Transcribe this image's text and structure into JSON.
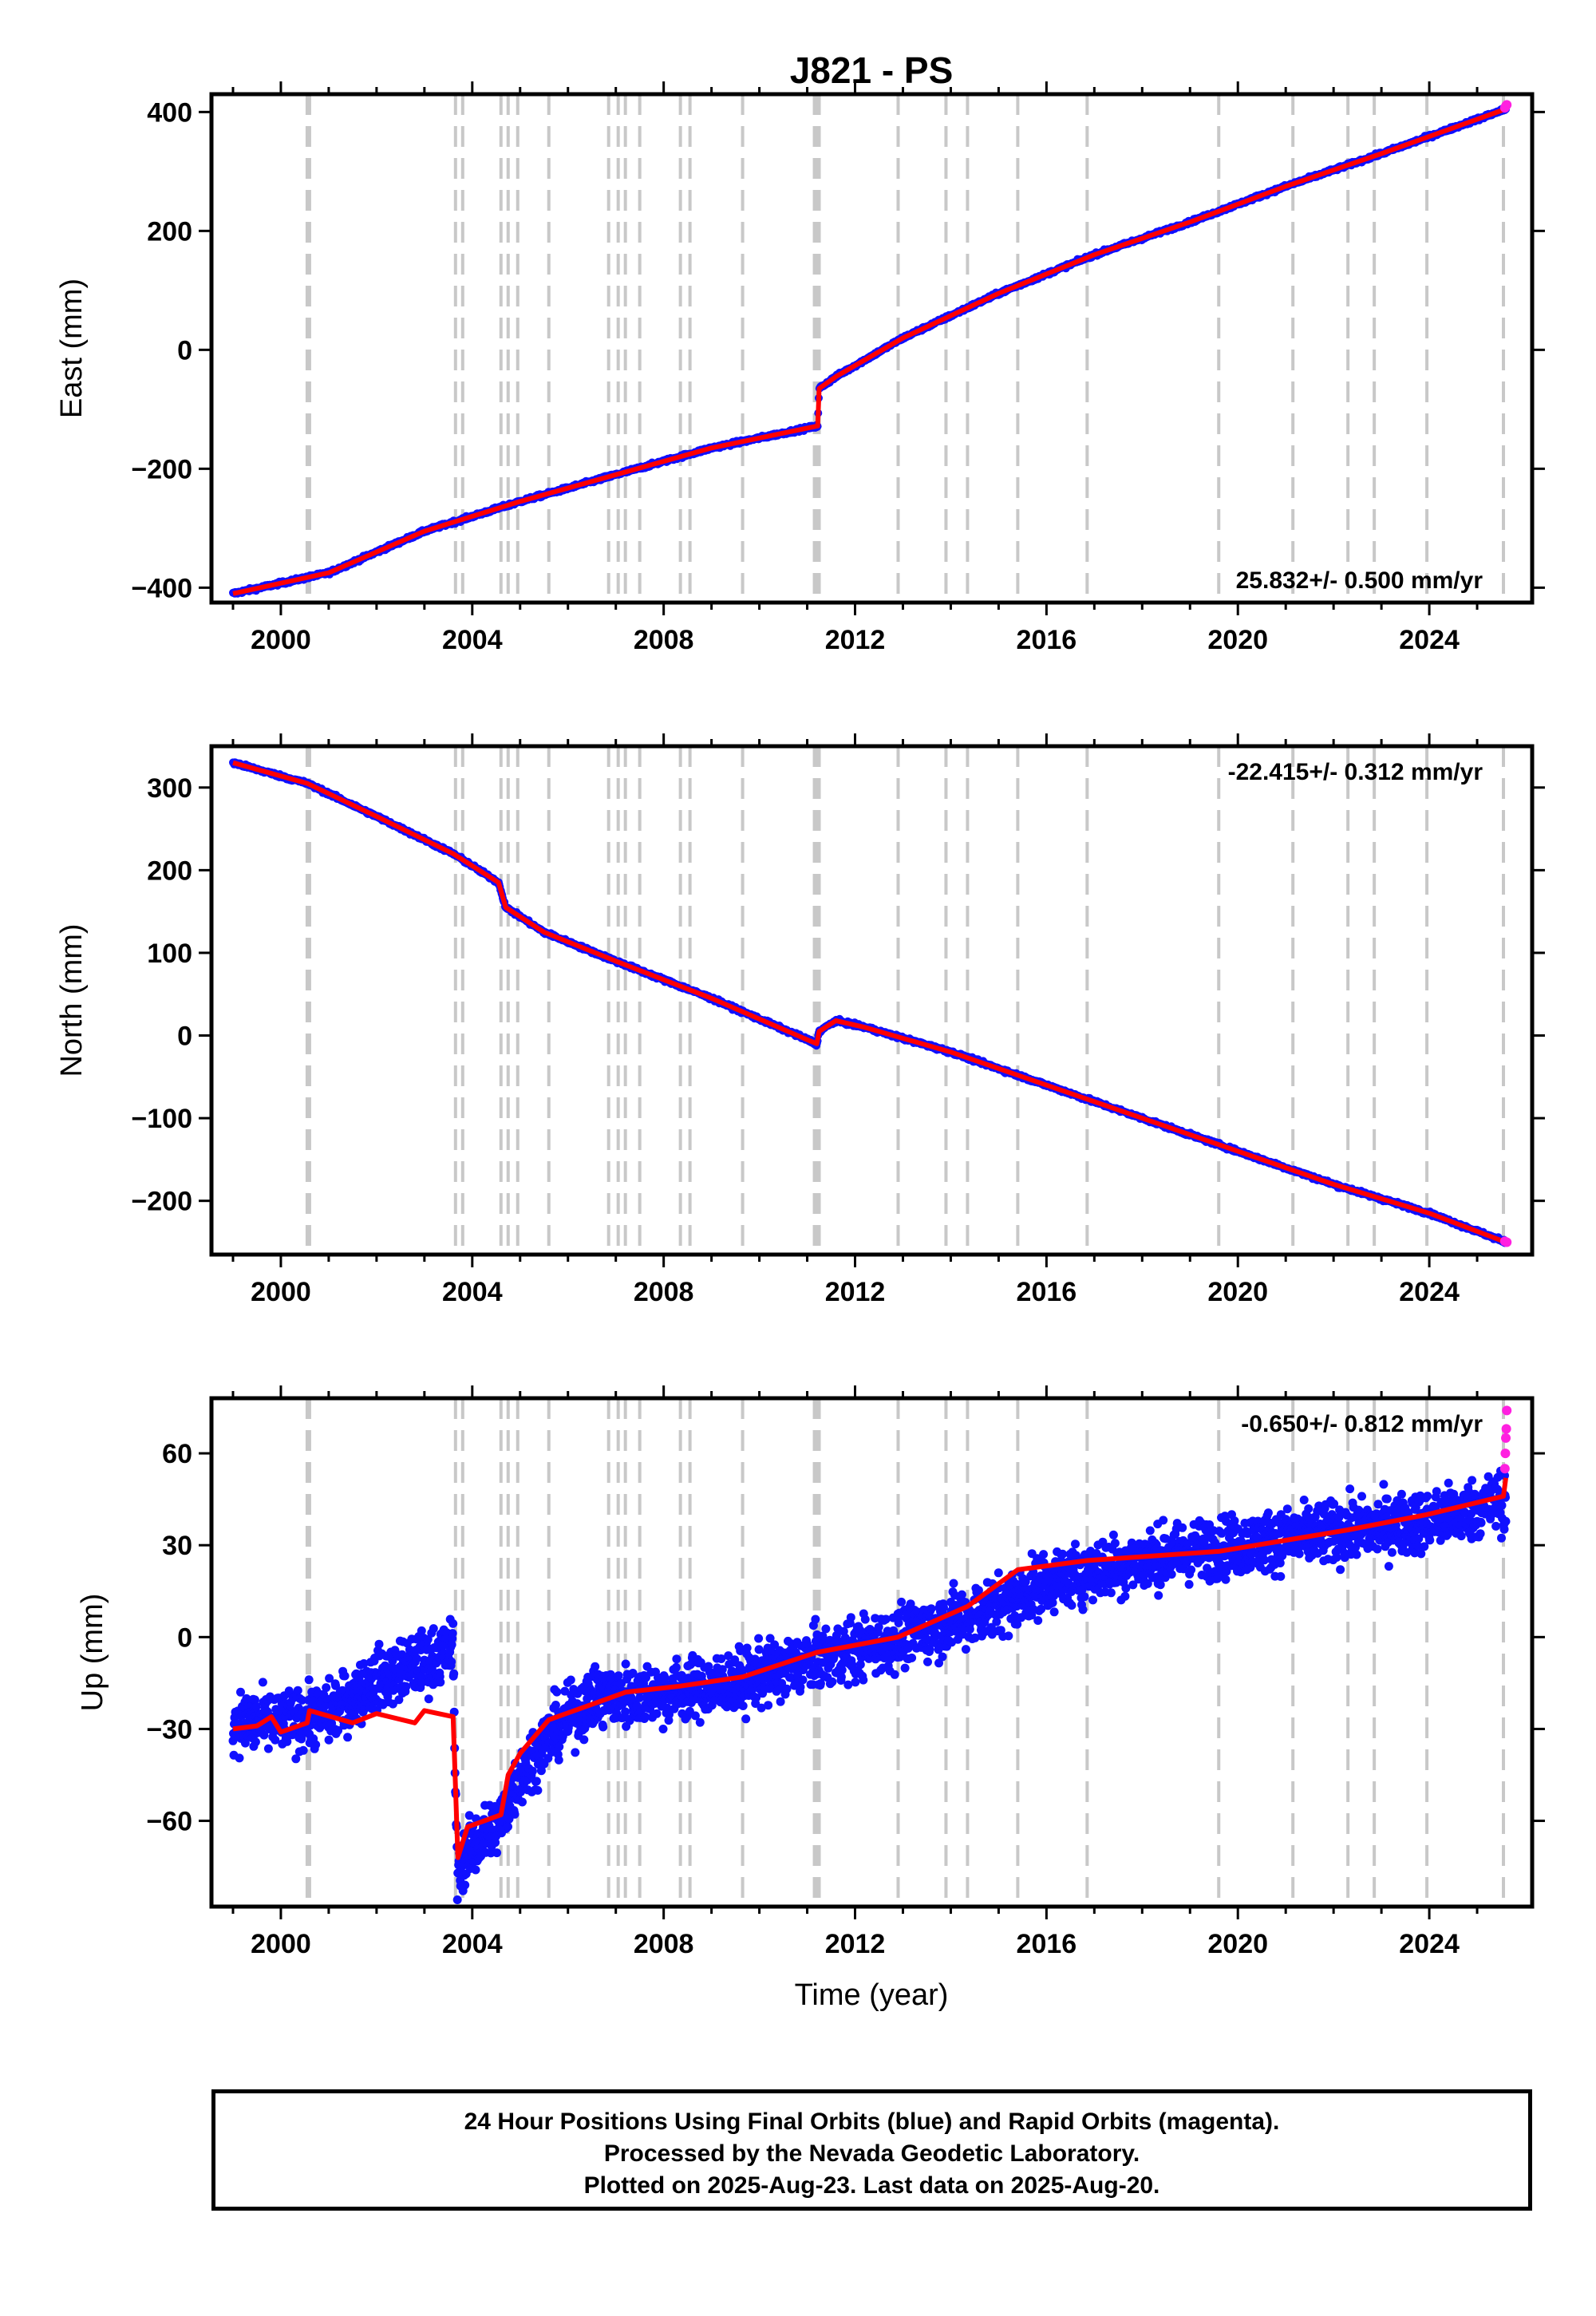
{
  "title": "J821 - PS",
  "xlabel": "Time (year)",
  "x_ticks": [
    2000,
    2004,
    2008,
    2012,
    2016,
    2020,
    2024
  ],
  "colors": {
    "final_orbits": "#1010ff",
    "rapid_orbits": "#ff20e0",
    "model": "#ff0000",
    "steps": "#c8c8c8"
  },
  "footer": {
    "line1": "24 Hour Positions Using Final Orbits (blue) and Rapid Orbits (magenta).",
    "line2": "Processed by the Nevada Geodetic Laboratory.",
    "line3": "Plotted on 2025-Aug-23. Last data on 2025-Aug-20."
  },
  "chart_data": [
    {
      "type": "scatter",
      "ylabel": "East (mm)",
      "rate": "25.832+/- 0.500 mm/yr",
      "rate_position": "bottom-right",
      "xlim": [
        1998.55,
        2026.15
      ],
      "ylim": [
        -425,
        430
      ],
      "y_ticks": [
        -400,
        -200,
        0,
        200,
        400
      ],
      "step_lines": [
        2000.55,
        2000.6,
        2003.65,
        2003.8,
        2004.6,
        2004.75,
        2004.95,
        2005.6,
        2006.85,
        2007.05,
        2007.2,
        2007.5,
        2008.35,
        2008.55,
        2009.65,
        2011.15,
        2011.2,
        2011.25,
        2012.9,
        2013.9,
        2014.35,
        2015.4,
        2016.85,
        2019.6,
        2021.15,
        2022.3,
        2022.85,
        2023.95,
        2025.55
      ],
      "series": [
        {
          "name": "Final Orbits",
          "color": "#1010ff",
          "x": [
            1999.0,
            2001.0,
            2003.0,
            2005.0,
            2007.0,
            2009.0,
            2011.22,
            2011.25,
            2011.6,
            2013.0,
            2015.0,
            2017.0,
            2019.0,
            2021.0,
            2023.0,
            2025.6
          ],
          "y": [
            -410,
            -375,
            -305,
            -255,
            -210,
            -165,
            -128,
            -65,
            -45,
            20,
            95,
            160,
            215,
            275,
            330,
            405
          ]
        },
        {
          "name": "Rapid Orbits",
          "color": "#ff20e0",
          "x": [
            2025.58,
            2025.6,
            2025.62
          ],
          "y": [
            407,
            410,
            412
          ]
        },
        {
          "name": "Model",
          "color": "#ff0000",
          "x": [
            1999.0,
            2001.0,
            2003.0,
            2005.0,
            2007.0,
            2009.0,
            2011.22,
            2011.25,
            2011.6,
            2013.0,
            2015.0,
            2017.0,
            2019.0,
            2021.0,
            2023.0,
            2025.6
          ],
          "y": [
            -410,
            -375,
            -305,
            -255,
            -210,
            -165,
            -128,
            -65,
            -45,
            20,
            95,
            160,
            215,
            275,
            330,
            405
          ]
        }
      ]
    },
    {
      "type": "scatter",
      "ylabel": "North (mm)",
      "rate": "-22.415+/- 0.312 mm/yr",
      "rate_position": "top-right",
      "xlim": [
        1998.55,
        2026.15
      ],
      "ylim": [
        -265,
        350
      ],
      "y_ticks": [
        -200,
        -100,
        0,
        100,
        200,
        300
      ],
      "step_lines": [
        2000.55,
        2000.6,
        2003.65,
        2003.8,
        2004.6,
        2004.75,
        2004.95,
        2005.6,
        2006.85,
        2007.05,
        2007.2,
        2007.5,
        2008.35,
        2008.55,
        2009.65,
        2011.15,
        2011.2,
        2011.25,
        2012.9,
        2013.9,
        2014.35,
        2015.4,
        2016.85,
        2019.6,
        2021.15,
        2022.3,
        2022.85,
        2023.95,
        2025.55
      ],
      "series": [
        {
          "name": "Final Orbits",
          "color": "#1010ff",
          "x": [
            1999.0,
            2000.55,
            2002.0,
            2003.6,
            2004.55,
            2004.7,
            2005.5,
            2007.0,
            2009.0,
            2011.2,
            2011.25,
            2011.6,
            2012.2,
            2014.0,
            2016.0,
            2018.0,
            2020.0,
            2022.0,
            2024.0,
            2025.6
          ],
          "y": [
            330,
            305,
            265,
            220,
            185,
            155,
            125,
            90,
            45,
            -10,
            5,
            18,
            10,
            -20,
            -60,
            -100,
            -140,
            -180,
            -215,
            -250
          ]
        },
        {
          "name": "Rapid Orbits",
          "color": "#ff20e0",
          "x": [
            2025.58,
            2025.62
          ],
          "y": [
            -249,
            -250
          ]
        },
        {
          "name": "Model",
          "color": "#ff0000",
          "x": [
            1999.0,
            2000.55,
            2002.0,
            2003.6,
            2004.55,
            2004.7,
            2005.5,
            2007.0,
            2009.0,
            2011.2,
            2011.25,
            2011.6,
            2012.2,
            2014.0,
            2016.0,
            2018.0,
            2020.0,
            2022.0,
            2024.0,
            2025.6
          ],
          "y": [
            330,
            305,
            265,
            220,
            185,
            155,
            125,
            90,
            45,
            -10,
            5,
            18,
            10,
            -20,
            -60,
            -100,
            -140,
            -180,
            -215,
            -250
          ]
        }
      ]
    },
    {
      "type": "scatter",
      "ylabel": "Up (mm)",
      "rate": "-0.650+/- 0.812 mm/yr",
      "rate_position": "top-right",
      "xlim": [
        1998.55,
        2026.15
      ],
      "ylim": [
        -88,
        78
      ],
      "y_ticks": [
        -60,
        -30,
        0,
        30,
        60
      ],
      "step_lines": [
        2000.55,
        2000.6,
        2003.65,
        2003.8,
        2004.6,
        2004.75,
        2004.95,
        2005.6,
        2006.85,
        2007.05,
        2007.2,
        2007.5,
        2008.35,
        2008.55,
        2009.65,
        2011.15,
        2011.2,
        2011.25,
        2012.9,
        2013.9,
        2014.35,
        2015.4,
        2016.85,
        2019.6,
        2021.15,
        2022.3,
        2022.85,
        2023.95,
        2025.55
      ],
      "series": [
        {
          "name": "Final Orbits",
          "color": "#1010ff",
          "x": [
            1999.0,
            2000.0,
            2001.0,
            2002.0,
            2003.0,
            2003.6,
            2003.68,
            2003.9,
            2004.6,
            2005.0,
            2005.6,
            2006.5,
            2008.0,
            2009.5,
            2011.0,
            2012.0,
            2013.0,
            2014.0,
            2015.0,
            2016.0,
            2017.0,
            2018.0,
            2019.0,
            2020.0,
            2021.0,
            2022.0,
            2023.0,
            2024.0,
            2025.0,
            2025.6
          ],
          "y": [
            -28,
            -28,
            -25,
            -14,
            -8,
            -4,
            -75,
            -70,
            -60,
            -45,
            -32,
            -20,
            -18,
            -15,
            -8,
            -4,
            0,
            5,
            10,
            18,
            22,
            25,
            28,
            30,
            32,
            34,
            36,
            38,
            42,
            45
          ]
        },
        {
          "name": "Rapid Orbits",
          "color": "#ff20e0",
          "x": [
            2025.58,
            2025.59,
            2025.6,
            2025.61,
            2025.62
          ],
          "y": [
            55,
            60,
            65,
            68,
            74
          ]
        },
        {
          "name": "Model",
          "color": "#ff0000",
          "x": [
            1999.0,
            1999.5,
            1999.8,
            2000.0,
            2000.55,
            2000.6,
            2001.5,
            2002.0,
            2002.8,
            2003.0,
            2003.6,
            2003.7,
            2003.9,
            2004.6,
            2004.75,
            2005.0,
            2005.6,
            2006.85,
            2007.2,
            2008.35,
            2009.65,
            2011.2,
            2012.9,
            2014.35,
            2015.4,
            2016.85,
            2019.6,
            2021.15,
            2022.3,
            2023.95,
            2025.55,
            2025.6
          ],
          "y": [
            -30,
            -29,
            -26,
            -31,
            -28,
            -24,
            -28,
            -25,
            -28,
            -24,
            -26,
            -72,
            -62,
            -58,
            -45,
            -38,
            -27,
            -20,
            -18,
            -16,
            -13,
            -5,
            0,
            10,
            22,
            25,
            28,
            32,
            35,
            40,
            46,
            52
          ]
        }
      ]
    }
  ]
}
